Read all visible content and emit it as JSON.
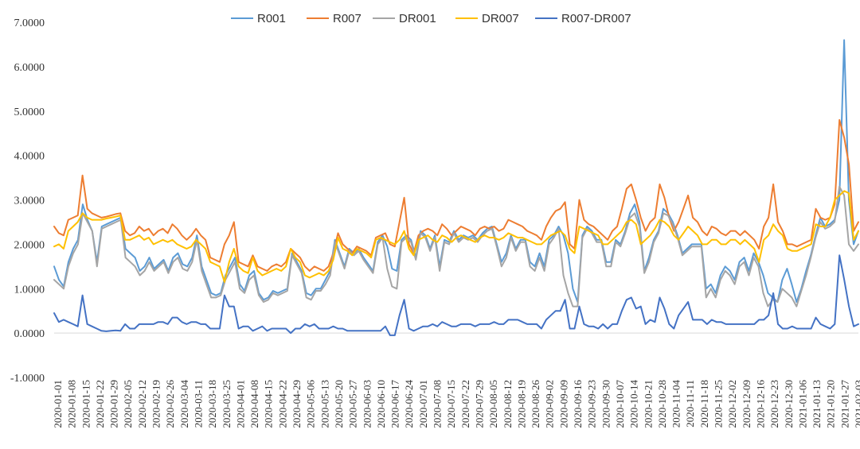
{
  "chart_data": {
    "type": "line",
    "title": "",
    "xlabel": "",
    "ylabel": "",
    "ylim": [
      -1.0,
      7.0
    ],
    "y_ticks": [
      "7.0000",
      "6.0000",
      "5.0000",
      "4.0000",
      "3.0000",
      "2.0000",
      "1.0000",
      "0.0000",
      "-1.0000"
    ],
    "y_tick_values": [
      7,
      6,
      5,
      4,
      3,
      2,
      1,
      0,
      -1
    ],
    "x_tick_labels": [
      "2020-01-01",
      "2020-01-08",
      "2020-01-15",
      "2020-01-22",
      "2020-01-29",
      "2020-02-05",
      "2020-02-12",
      "2020-02-19",
      "2020-02-26",
      "2020-03-04",
      "2020-03-11",
      "2020-03-18",
      "2020-03-25",
      "2020-04-01",
      "2020-04-08",
      "2020-04-15",
      "2020-04-22",
      "2020-04-29",
      "2020-05-06",
      "2020-05-13",
      "2020-05-20",
      "2020-05-27",
      "2020-06-03",
      "2020-06-10",
      "2020-06-17",
      "2020-06-24",
      "2020-07-01",
      "2020-07-08",
      "2020-07-15",
      "2020-07-22",
      "2020-07-29",
      "2020-08-05",
      "2020-08-12",
      "2020-08-19",
      "2020-08-26",
      "2020-09-02",
      "2020-09-09",
      "2020-09-16",
      "2020-09-23",
      "2020-09-30",
      "2020-10-07",
      "2020-10-14",
      "2020-10-21",
      "2020-10-28",
      "2020-11-04",
      "2020-11-11",
      "2020-11-18",
      "2020-11-25",
      "2020-12-02",
      "2020-12-09",
      "2020-12-16",
      "2020-12-23",
      "2020-12-30",
      "2021-01-06",
      "2021-01-13",
      "2021-01-20",
      "2021-01-27",
      "2021-02-03"
    ],
    "grid": false,
    "legend_placement": "top-center",
    "series": [
      {
        "name": "R001",
        "color": "#5b9bd5",
        "values": [
          1.5,
          1.2,
          1.05,
          1.6,
          1.9,
          2.1,
          2.9,
          2.55,
          2.3,
          1.6,
          2.4,
          2.45,
          2.5,
          2.55,
          2.6,
          1.9,
          1.8,
          1.7,
          1.4,
          1.5,
          1.7,
          1.45,
          1.55,
          1.65,
          1.4,
          1.7,
          1.8,
          1.55,
          1.5,
          1.7,
          2.2,
          1.5,
          1.2,
          0.9,
          0.85,
          0.9,
          1.3,
          1.5,
          1.7,
          1.1,
          0.95,
          1.3,
          1.4,
          0.9,
          0.75,
          0.8,
          0.95,
          0.9,
          0.95,
          1.0,
          1.8,
          1.6,
          1.4,
          0.9,
          0.85,
          1.0,
          1.0,
          1.2,
          1.4,
          2.1,
          1.8,
          1.5,
          1.9,
          1.8,
          1.9,
          1.7,
          1.55,
          1.4,
          2.05,
          2.2,
          1.95,
          1.45,
          1.4,
          2.1,
          2.2,
          2.1,
          1.7,
          2.3,
          2.2,
          1.9,
          2.2,
          1.5,
          2.1,
          2.05,
          2.3,
          2.1,
          2.2,
          2.15,
          2.2,
          2.1,
          2.25,
          2.35,
          2.4,
          2.0,
          1.6,
          1.8,
          2.2,
          1.9,
          2.1,
          2.1,
          1.6,
          1.5,
          1.8,
          1.5,
          2.1,
          2.2,
          2.4,
          2.2,
          1.8,
          1.0,
          0.7,
          2.2,
          2.4,
          2.3,
          2.1,
          2.1,
          1.6,
          1.6,
          2.1,
          2.0,
          2.3,
          2.7,
          2.9,
          2.5,
          1.4,
          1.7,
          2.1,
          2.3,
          2.8,
          2.7,
          2.5,
          2.2,
          1.8,
          1.9,
          2.0,
          2.0,
          2.0,
          1.0,
          1.1,
          0.9,
          1.3,
          1.5,
          1.4,
          1.2,
          1.6,
          1.7,
          1.4,
          1.8,
          1.6,
          1.3,
          0.9,
          0.8,
          0.7,
          1.2,
          1.45,
          1.1,
          0.7,
          1.0,
          1.4,
          1.75,
          2.2,
          2.6,
          2.4,
          2.45,
          2.55,
          3.0,
          6.6,
          3.0,
          2.0,
          2.3
        ]
      },
      {
        "name": "R007",
        "color": "#ed7d31",
        "values": [
          2.4,
          2.25,
          2.2,
          2.55,
          2.6,
          2.65,
          3.55,
          2.8,
          2.7,
          2.65,
          2.6,
          2.62,
          2.65,
          2.68,
          2.7,
          2.3,
          2.2,
          2.25,
          2.4,
          2.3,
          2.35,
          2.2,
          2.3,
          2.35,
          2.25,
          2.45,
          2.35,
          2.2,
          2.1,
          2.2,
          2.35,
          2.2,
          2.1,
          1.7,
          1.65,
          1.6,
          2.0,
          2.2,
          2.5,
          1.6,
          1.55,
          1.5,
          1.75,
          1.5,
          1.45,
          1.4,
          1.5,
          1.55,
          1.5,
          1.6,
          1.9,
          1.8,
          1.7,
          1.5,
          1.4,
          1.5,
          1.45,
          1.4,
          1.5,
          1.8,
          2.25,
          2.0,
          1.9,
          1.8,
          1.95,
          1.9,
          1.85,
          1.75,
          2.15,
          2.2,
          2.25,
          2.0,
          1.95,
          2.5,
          3.05,
          2.0,
          1.8,
          2.2,
          2.3,
          2.35,
          2.3,
          2.2,
          2.45,
          2.35,
          2.2,
          2.3,
          2.4,
          2.35,
          2.3,
          2.2,
          2.35,
          2.4,
          2.35,
          2.4,
          2.3,
          2.35,
          2.55,
          2.5,
          2.45,
          2.4,
          2.3,
          2.25,
          2.2,
          2.1,
          2.4,
          2.6,
          2.75,
          2.8,
          2.95,
          2.0,
          1.9,
          3.0,
          2.55,
          2.45,
          2.4,
          2.3,
          2.2,
          2.1,
          2.3,
          2.4,
          2.8,
          3.25,
          3.35,
          3.0,
          2.6,
          2.3,
          2.5,
          2.6,
          3.35,
          3.05,
          2.6,
          2.3,
          2.5,
          2.8,
          3.1,
          2.6,
          2.5,
          2.3,
          2.2,
          2.4,
          2.35,
          2.25,
          2.2,
          2.3,
          2.3,
          2.2,
          2.3,
          2.2,
          2.1,
          1.9,
          2.4,
          2.6,
          3.35,
          2.5,
          2.3,
          2.0,
          2.0,
          1.95,
          2.0,
          2.05,
          2.1,
          2.8,
          2.6,
          2.55,
          2.6,
          2.9,
          4.8,
          4.4,
          3.8,
          2.3,
          2.5
        ]
      },
      {
        "name": "DR001",
        "color": "#a5a5a5",
        "values": [
          1.2,
          1.1,
          1.0,
          1.5,
          1.8,
          2.0,
          2.7,
          2.5,
          2.3,
          1.5,
          2.35,
          2.4,
          2.45,
          2.5,
          2.55,
          1.7,
          1.6,
          1.5,
          1.3,
          1.4,
          1.6,
          1.4,
          1.5,
          1.6,
          1.35,
          1.6,
          1.7,
          1.45,
          1.4,
          1.6,
          2.1,
          1.4,
          1.1,
          0.8,
          0.8,
          0.85,
          1.2,
          1.4,
          1.6,
          1.0,
          0.9,
          1.2,
          1.3,
          0.85,
          0.7,
          0.75,
          0.9,
          0.85,
          0.9,
          0.95,
          1.75,
          1.55,
          1.35,
          0.8,
          0.75,
          0.95,
          0.95,
          1.1,
          1.3,
          2.05,
          1.75,
          1.45,
          1.85,
          1.75,
          1.85,
          1.65,
          1.5,
          1.35,
          2.0,
          2.15,
          1.45,
          1.05,
          1.0,
          2.05,
          2.15,
          2.05,
          1.65,
          2.25,
          2.15,
          1.85,
          2.15,
          1.4,
          2.05,
          2.0,
          2.25,
          2.05,
          2.15,
          2.1,
          2.15,
          2.05,
          2.2,
          2.3,
          2.35,
          1.95,
          1.5,
          1.7,
          2.15,
          1.85,
          2.05,
          2.05,
          1.5,
          1.4,
          1.7,
          1.4,
          2.0,
          2.15,
          2.35,
          1.3,
          0.9,
          0.6,
          0.6,
          2.15,
          2.35,
          2.25,
          2.05,
          2.05,
          1.5,
          1.5,
          2.05,
          1.95,
          2.25,
          2.6,
          2.7,
          2.4,
          1.35,
          1.6,
          2.05,
          2.25,
          2.7,
          2.65,
          2.45,
          2.15,
          1.75,
          1.85,
          1.95,
          1.95,
          1.95,
          0.8,
          1.0,
          0.8,
          1.2,
          1.4,
          1.3,
          1.1,
          1.5,
          1.6,
          1.3,
          1.7,
          1.5,
          0.9,
          0.6,
          0.75,
          0.7,
          1.0,
          0.9,
          0.8,
          0.6,
          0.95,
          1.3,
          1.7,
          2.15,
          2.5,
          2.35,
          2.4,
          2.5,
          3.3,
          3.1,
          2.0,
          1.85,
          2.0
        ]
      },
      {
        "name": "DR007",
        "color": "#ffc000",
        "values": [
          1.95,
          2.0,
          1.9,
          2.3,
          2.4,
          2.5,
          2.7,
          2.6,
          2.55,
          2.55,
          2.55,
          2.58,
          2.6,
          2.62,
          2.65,
          2.1,
          2.1,
          2.15,
          2.2,
          2.1,
          2.15,
          2.0,
          2.05,
          2.1,
          2.05,
          2.1,
          2.0,
          1.95,
          1.9,
          1.95,
          2.1,
          2.0,
          1.9,
          1.6,
          1.55,
          1.5,
          1.15,
          1.6,
          1.9,
          1.5,
          1.4,
          1.35,
          1.7,
          1.4,
          1.3,
          1.35,
          1.4,
          1.45,
          1.4,
          1.5,
          1.9,
          1.7,
          1.6,
          1.3,
          1.25,
          1.3,
          1.35,
          1.3,
          1.4,
          1.65,
          2.15,
          1.9,
          1.85,
          1.75,
          1.9,
          1.85,
          1.8,
          1.7,
          2.1,
          2.15,
          2.1,
          2.05,
          2.0,
          2.1,
          2.3,
          1.9,
          1.75,
          2.1,
          2.15,
          2.2,
          2.1,
          2.05,
          2.2,
          2.15,
          2.05,
          2.15,
          2.2,
          2.15,
          2.1,
          2.05,
          2.15,
          2.2,
          2.15,
          2.15,
          2.1,
          2.15,
          2.25,
          2.2,
          2.15,
          2.15,
          2.1,
          2.05,
          2.0,
          2.0,
          2.1,
          2.2,
          2.25,
          2.3,
          2.2,
          1.9,
          1.8,
          2.4,
          2.35,
          2.3,
          2.25,
          2.2,
          2.0,
          2.0,
          2.1,
          2.2,
          2.3,
          2.5,
          2.55,
          2.45,
          2.0,
          2.1,
          2.2,
          2.35,
          2.55,
          2.5,
          2.4,
          2.2,
          2.1,
          2.25,
          2.4,
          2.3,
          2.2,
          2.0,
          2.0,
          2.1,
          2.1,
          2.0,
          2.0,
          2.1,
          2.1,
          2.0,
          2.1,
          2.0,
          1.9,
          1.6,
          2.1,
          2.2,
          2.45,
          2.3,
          2.2,
          1.9,
          1.85,
          1.85,
          1.9,
          1.95,
          2.0,
          2.45,
          2.4,
          2.4,
          2.6,
          3.0,
          3.1,
          3.2,
          3.15,
          2.1,
          2.3
        ]
      },
      {
        "name": "R007-DR007",
        "color": "#4472c4",
        "values": [
          0.45,
          0.25,
          0.3,
          0.25,
          0.2,
          0.15,
          0.85,
          0.2,
          0.15,
          0.1,
          0.05,
          0.04,
          0.05,
          0.06,
          0.05,
          0.2,
          0.1,
          0.1,
          0.2,
          0.2,
          0.2,
          0.2,
          0.25,
          0.25,
          0.2,
          0.35,
          0.35,
          0.25,
          0.2,
          0.25,
          0.25,
          0.2,
          0.2,
          0.1,
          0.1,
          0.1,
          0.85,
          0.6,
          0.6,
          0.1,
          0.15,
          0.15,
          0.05,
          0.1,
          0.15,
          0.05,
          0.1,
          0.1,
          0.1,
          0.1,
          0.0,
          0.1,
          0.1,
          0.2,
          0.15,
          0.2,
          0.1,
          0.1,
          0.1,
          0.15,
          0.1,
          0.1,
          0.05,
          0.05,
          0.05,
          0.05,
          0.05,
          0.05,
          0.05,
          0.05,
          0.15,
          -0.05,
          -0.05,
          0.4,
          0.75,
          0.1,
          0.05,
          0.1,
          0.15,
          0.15,
          0.2,
          0.15,
          0.25,
          0.2,
          0.15,
          0.15,
          0.2,
          0.2,
          0.2,
          0.15,
          0.2,
          0.2,
          0.2,
          0.25,
          0.2,
          0.2,
          0.3,
          0.3,
          0.3,
          0.25,
          0.2,
          0.2,
          0.2,
          0.1,
          0.3,
          0.4,
          0.5,
          0.5,
          0.75,
          0.1,
          0.1,
          0.6,
          0.2,
          0.15,
          0.15,
          0.1,
          0.2,
          0.1,
          0.2,
          0.2,
          0.5,
          0.75,
          0.8,
          0.55,
          0.6,
          0.2,
          0.3,
          0.25,
          0.8,
          0.55,
          0.2,
          0.1,
          0.4,
          0.55,
          0.7,
          0.3,
          0.3,
          0.3,
          0.2,
          0.3,
          0.25,
          0.25,
          0.2,
          0.2,
          0.2,
          0.2,
          0.2,
          0.2,
          0.2,
          0.3,
          0.3,
          0.4,
          0.9,
          0.2,
          0.1,
          0.1,
          0.15,
          0.1,
          0.1,
          0.1,
          0.1,
          0.35,
          0.2,
          0.15,
          0.1,
          0.2,
          1.75,
          1.2,
          0.6,
          0.15,
          0.2
        ]
      }
    ]
  }
}
